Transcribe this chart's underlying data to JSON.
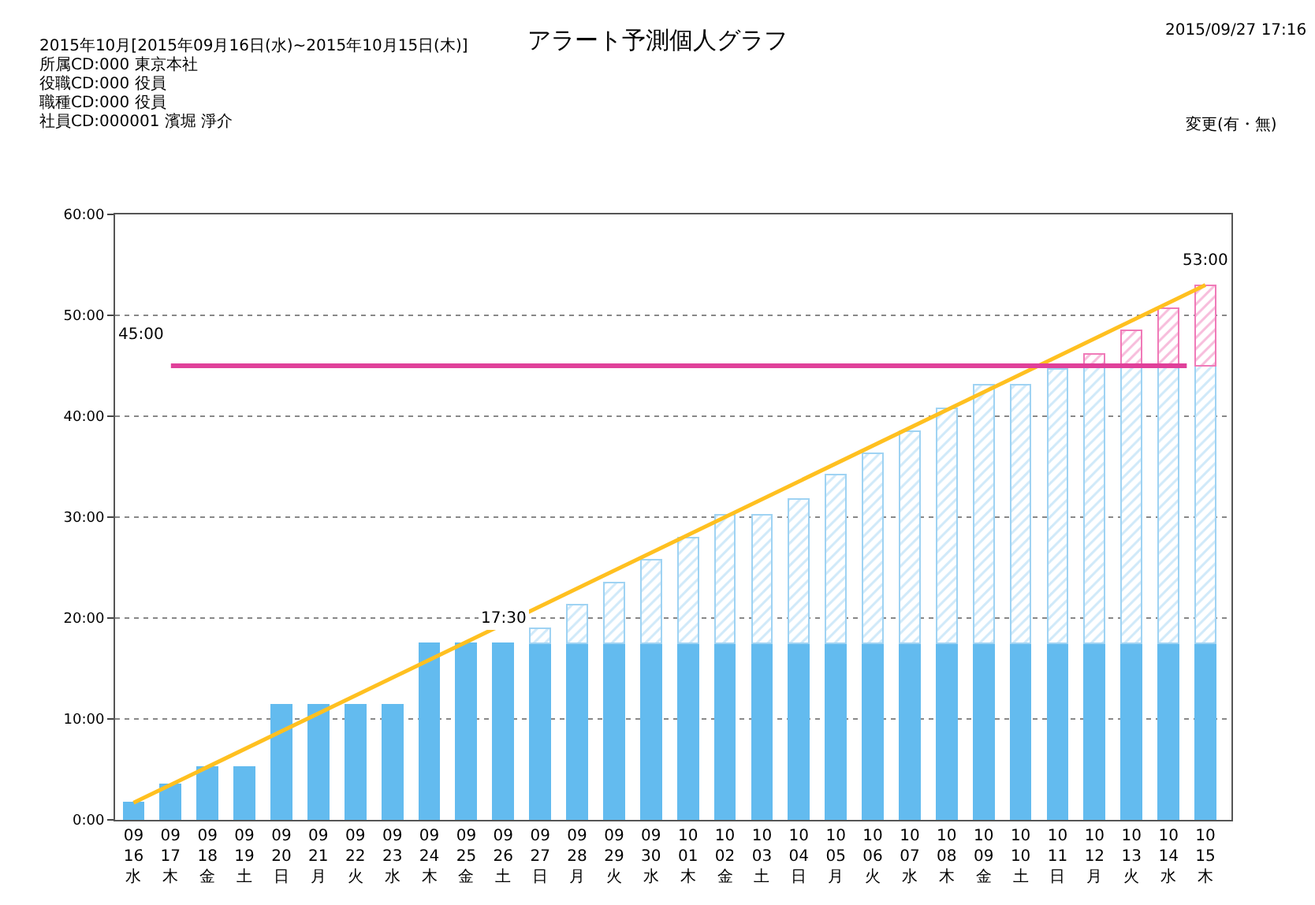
{
  "chart_data": {
    "type": "bar",
    "stacked": true,
    "title": "アラート予測個人グラフ",
    "categories": [
      "09\n16\n水",
      "09\n17\n木",
      "09\n18\n金",
      "09\n19\n土",
      "09\n20\n日",
      "09\n21\n月",
      "09\n22\n火",
      "09\n23\n水",
      "09\n24\n木",
      "09\n25\n金",
      "09\n26\n土",
      "09\n27\n日",
      "09\n28\n月",
      "09\n29\n火",
      "09\n30\n水",
      "10\n01\n木",
      "10\n02\n金",
      "10\n03\n土",
      "10\n04\n日",
      "10\n05\n月",
      "10\n06\n火",
      "10\n07\n水",
      "10\n08\n木",
      "10\n09\n金",
      "10\n10\n土",
      "10\n11\n日",
      "10\n12\n月",
      "10\n13\n火",
      "10\n14\n水",
      "10\n15\n木"
    ],
    "series": [
      {
        "color": "#63bbef",
        "values": [
          1.7,
          3.5,
          5.2,
          5.2,
          11.4,
          11.4,
          11.4,
          11.4,
          17.5,
          17.5,
          17.5,
          17.5,
          17.5,
          17.5,
          17.5,
          17.5,
          17.5,
          17.5,
          17.5,
          17.5,
          17.5,
          17.5,
          17.5,
          17.5,
          17.5,
          17.5,
          17.5,
          17.5,
          17.5,
          17.5
        ]
      },
      {
        "color": "#9fd3f3",
        "values": [
          0,
          0,
          0,
          0,
          0,
          0,
          0,
          0,
          0,
          0,
          0,
          1.5,
          3.8,
          6.0,
          8.3,
          10.5,
          12.7,
          12.7,
          14.3,
          16.7,
          18.8,
          21.0,
          23.3,
          25.6,
          25.6,
          27.2,
          27.5,
          27.5,
          27.5,
          27.5
        ]
      },
      {
        "color": "#f07ab8",
        "values": [
          0,
          0,
          0,
          0,
          0,
          0,
          0,
          0,
          0,
          0,
          0,
          0,
          0,
          0,
          0,
          0,
          0,
          0,
          0,
          0,
          0,
          0,
          0,
          0,
          0,
          0,
          1.2,
          3.5,
          5.7,
          8.0
        ]
      },
      {
        "type": "line",
        "color": "#ffc020",
        "x": [
          "09\n16\n水",
          "10\n15\n木"
        ],
        "values": [
          1.7,
          53
        ]
      }
    ],
    "ylim": [
      0,
      60
    ],
    "yticks": [
      {
        "value": 0,
        "label": "0:00"
      },
      {
        "value": 10,
        "label": "10:00"
      },
      {
        "value": 20,
        "label": "20:00"
      },
      {
        "value": 30,
        "label": "30:00"
      },
      {
        "value": 40,
        "label": "40:00"
      },
      {
        "value": 50,
        "label": "50:00"
      },
      {
        "value": 60,
        "label": "60:00"
      }
    ],
    "grid": "y",
    "ref_lines": [
      {
        "axis": "y",
        "value": 45,
        "label": "45:00",
        "color": "#e0409a"
      }
    ],
    "annotations": [
      {
        "text": "17:30",
        "x": "09\n26\n土",
        "y": 17.5
      },
      {
        "text": "53:00",
        "x": "10\n15\n木",
        "y": 53
      },
      "2015年10月[2015年09月16日(水)~2015年10月15日(木)]",
      "所属CD:000 東京本社",
      "役職CD:000 役員",
      "職種CD:000 役員",
      "社員CD:000001 濱堀 淨介",
      "2015/09/27 17:16",
      "変更(有・無)"
    ]
  }
}
